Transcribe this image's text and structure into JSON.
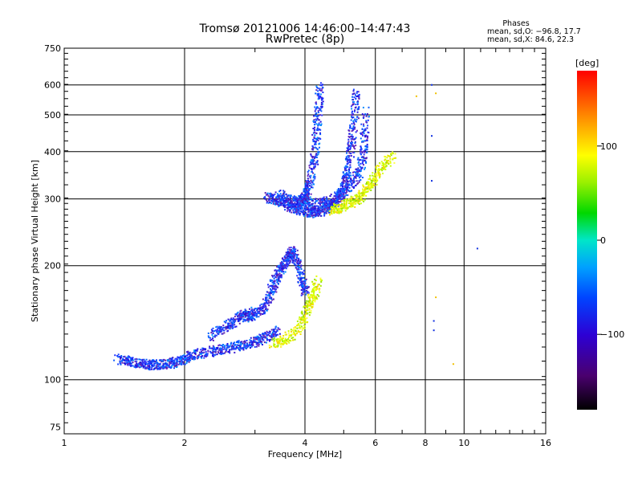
{
  "chart_data": {
    "type": "scatter",
    "title": "Tromsø 20121006 14:46:00–14:47:43",
    "subtitle": "RwPretec (8p)",
    "xlabel": "Frequency [MHz]",
    "ylabel": "Stationary phase Virtual Height [km]",
    "x_scale": "log",
    "y_scale": "log",
    "xlim": [
      1,
      16
    ],
    "ylim": [
      72,
      750
    ],
    "x_ticks": [
      1,
      2,
      4,
      6,
      8,
      10,
      16
    ],
    "x_tick_labels": [
      "1",
      "2",
      "4",
      "6",
      "8",
      "10",
      "16"
    ],
    "y_ticks": [
      75,
      100,
      200,
      300,
      400,
      500,
      600,
      750
    ],
    "y_tick_labels": [
      "75",
      "100",
      "200",
      "300",
      "400",
      "500",
      "600",
      "750"
    ],
    "grid": true,
    "phases_box": {
      "title": "Phases",
      "line1": "mean, sd,O: −96.8, 17.7",
      "line2": "mean, sd,X:  84.6, 22.3"
    },
    "colorbar": {
      "label": "[deg]",
      "range": [
        -180,
        180
      ],
      "ticks": [
        100,
        0,
        -100
      ],
      "tick_labels": [
        "100",
        "0",
        "−100"
      ]
    },
    "series": [
      {
        "color_key": "O-mode (blue/violet)",
        "phase_mean": -96.8,
        "phase_sd": 17.7,
        "traces": [
          [
            [
              1.35,
              114
            ],
            [
              1.45,
              112
            ],
            [
              1.55,
              111
            ],
            [
              1.65,
              110
            ],
            [
              1.75,
              110
            ],
            [
              1.85,
              111
            ],
            [
              1.95,
              113
            ],
            [
              2.05,
              116
            ],
            [
              2.2,
              118
            ],
            [
              2.4,
              120
            ],
            [
              2.6,
              122
            ],
            [
              2.8,
              124
            ],
            [
              3.0,
              127
            ],
            [
              3.2,
              130
            ],
            [
              3.4,
              135
            ]
          ],
          [
            [
              2.3,
              130
            ],
            [
              2.5,
              138
            ],
            [
              2.7,
              145
            ],
            [
              2.8,
              150
            ],
            [
              2.9,
              147
            ],
            [
              3.0,
              152
            ]
          ],
          [
            [
              3.05,
              150
            ],
            [
              3.2,
              160
            ],
            [
              3.3,
              175
            ],
            [
              3.4,
              190
            ],
            [
              3.5,
              200
            ],
            [
              3.6,
              210
            ],
            [
              3.7,
              220
            ],
            [
              3.8,
              205
            ],
            [
              3.9,
              185
            ],
            [
              4.0,
              170
            ]
          ],
          [
            [
              3.2,
              305
            ],
            [
              3.35,
              300
            ],
            [
              3.5,
              295
            ],
            [
              3.7,
              292
            ],
            [
              3.9,
              295
            ],
            [
              4.0,
              305
            ],
            [
              4.1,
              330
            ],
            [
              4.2,
              380
            ],
            [
              4.25,
              440
            ],
            [
              4.3,
              520
            ],
            [
              4.35,
              600
            ]
          ],
          [
            [
              3.6,
              290
            ],
            [
              3.8,
              283
            ],
            [
              4.0,
              278
            ],
            [
              4.2,
              277
            ],
            [
              4.4,
              280
            ],
            [
              4.6,
              288
            ],
            [
              4.8,
              300
            ],
            [
              5.0,
              325
            ],
            [
              5.1,
              360
            ],
            [
              5.2,
              420
            ],
            [
              5.3,
              500
            ],
            [
              5.35,
              580
            ]
          ],
          [
            [
              3.4,
              310
            ],
            [
              3.7,
              300
            ],
            [
              4.0,
              295
            ],
            [
              4.3,
              293
            ],
            [
              4.6,
              298
            ],
            [
              4.9,
              310
            ],
            [
              5.2,
              330
            ],
            [
              5.5,
              360
            ],
            [
              5.6,
              420
            ],
            [
              5.65,
              520
            ]
          ]
        ],
        "isolated": [
          [
            8.3,
            600
          ],
          [
            8.3,
            440
          ],
          [
            8.3,
            335
          ],
          [
            8.4,
            143
          ],
          [
            8.4,
            135
          ],
          [
            10.8,
            222
          ]
        ]
      },
      {
        "color_key": "X-mode (yellow/green)",
        "phase_mean": 84.6,
        "phase_sd": 22.3,
        "traces": [
          [
            [
              3.3,
              125
            ],
            [
              3.5,
              127
            ],
            [
              3.7,
              132
            ],
            [
              3.9,
              140
            ],
            [
              4.0,
              150
            ],
            [
              4.1,
              160
            ],
            [
              4.2,
              170
            ],
            [
              4.3,
              185
            ]
          ],
          [
            [
              4.6,
              280
            ],
            [
              4.8,
              285
            ],
            [
              5.0,
              290
            ],
            [
              5.2,
              295
            ],
            [
              5.4,
              300
            ],
            [
              5.6,
              315
            ],
            [
              5.8,
              330
            ],
            [
              6.0,
              350
            ],
            [
              6.3,
              370
            ],
            [
              6.6,
              390
            ]
          ]
        ],
        "isolated": [
          [
            7.6,
            560
          ],
          [
            8.5,
            570
          ],
          [
            9.4,
            110
          ],
          [
            8.5,
            165
          ]
        ]
      }
    ]
  }
}
